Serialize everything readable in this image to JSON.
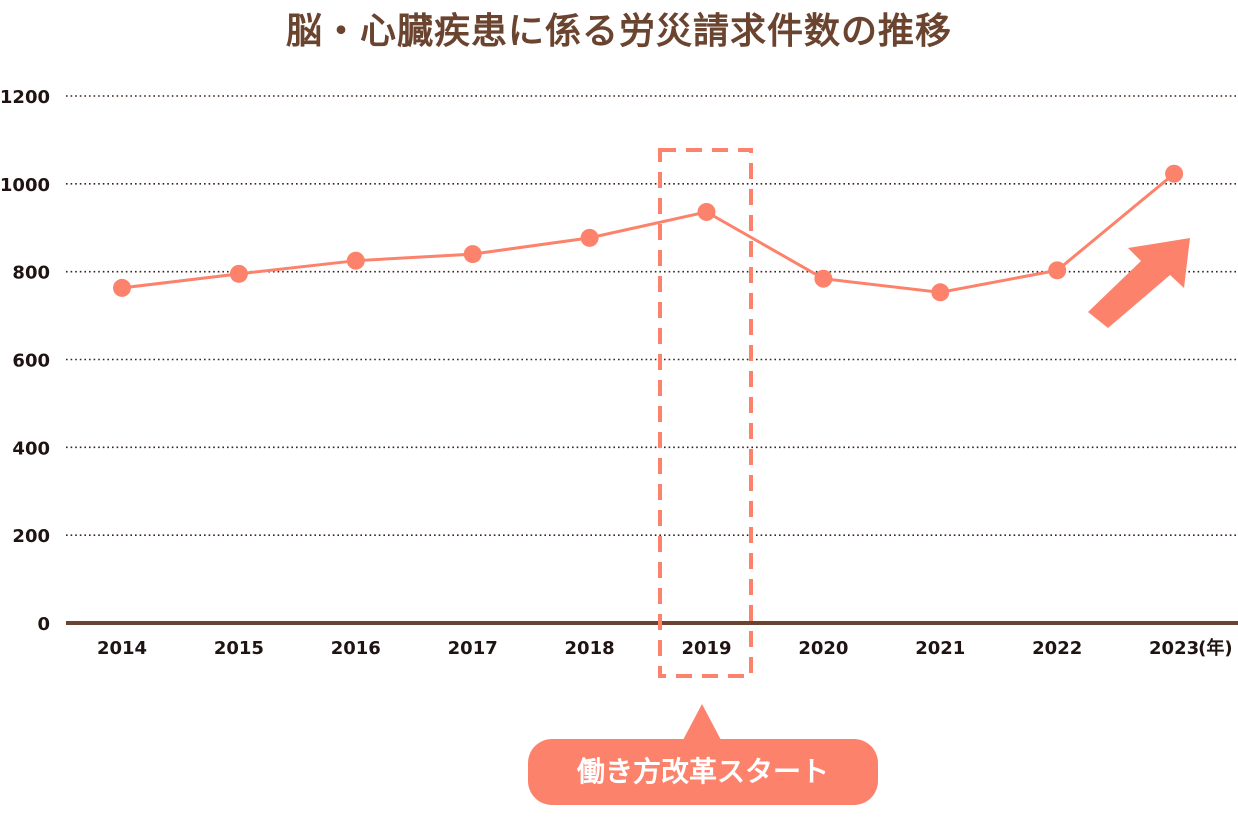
{
  "colors": {
    "title": "#6b4430",
    "series": "#fc826c",
    "axis": "#6b4430",
    "grid": "#3a2218",
    "labels": "#1f1411"
  },
  "annotation": {
    "highlight_year": "2019",
    "callout_text": "働き方改革スタート",
    "trend_arrow": "up-right-arrow"
  },
  "chart_data": {
    "type": "line",
    "title": "脳・心臓疾患に係る労災請求件数の推移",
    "xlabel": "(年)",
    "ylabel": "",
    "categories": [
      "2014",
      "2015",
      "2016",
      "2017",
      "2018",
      "2019",
      "2020",
      "2021",
      "2022",
      "2023"
    ],
    "series": [
      {
        "name": "労災請求件数",
        "values": [
          763,
          795,
          825,
          840,
          877,
          936,
          784,
          753,
          803,
          1023
        ]
      }
    ],
    "yticks": [
      0,
      200,
      400,
      600,
      800,
      1000,
      1200
    ],
    "ylim": [
      0,
      1200
    ],
    "grid": true,
    "grid_style": "dotted",
    "legend": "none"
  }
}
